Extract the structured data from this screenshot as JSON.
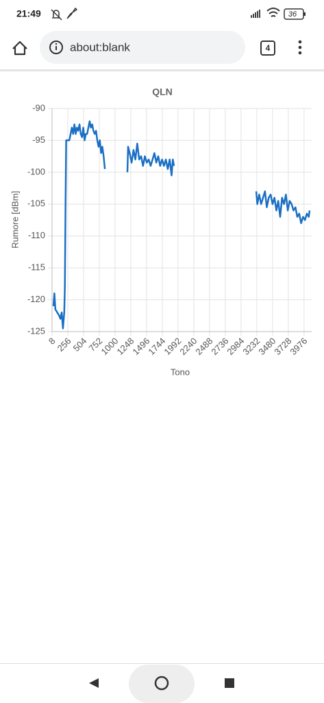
{
  "status_bar": {
    "time": "21:49",
    "battery": "36"
  },
  "browser": {
    "url": "about:blank",
    "tabs": "4"
  },
  "chart_data": {
    "type": "line",
    "title": "QLN",
    "y_label": "Rumore [dBm]",
    "x_label": "Tono",
    "xlim": [
      8,
      4096
    ],
    "xticks": [
      8,
      256,
      504,
      752,
      1000,
      1248,
      1496,
      1744,
      1992,
      2240,
      2488,
      2736,
      2984,
      3232,
      3480,
      3728,
      3976
    ],
    "ylim": [
      -125,
      -90
    ],
    "yticks": [
      -125,
      -120,
      -115,
      -110,
      -105,
      -100,
      -95,
      -90
    ],
    "grid": true,
    "series": [
      {
        "name": "QLN",
        "color": "#1a6fc4",
        "x": [
          30,
          45,
          60,
          90,
          120,
          140,
          160,
          180,
          200,
          210,
          220,
          230,
          280,
          300,
          320,
          340,
          360,
          380,
          400,
          420,
          440,
          460,
          480,
          500,
          520,
          540,
          560,
          580,
          600,
          620,
          640,
          660,
          680,
          700,
          720,
          740,
          760,
          780,
          800,
          820,
          840,
          1000,
          1195,
          1205,
          1230,
          1260,
          1290,
          1320,
          1350,
          1380,
          1410,
          1440,
          1470,
          1500,
          1530,
          1560,
          1590,
          1620,
          1650,
          1680,
          1710,
          1740,
          1770,
          1800,
          1830,
          1860,
          1890,
          1910,
          1928,
          2500,
          3223,
          3240,
          3270,
          3300,
          3330,
          3360,
          3390,
          3420,
          3450,
          3480,
          3510,
          3540,
          3570,
          3600,
          3630,
          3660,
          3690,
          3720,
          3750,
          3780,
          3810,
          3840,
          3870,
          3900,
          3930,
          3960,
          3990,
          4020,
          4050,
          4064
        ],
        "values": [
          -121,
          -119,
          -121.5,
          -122,
          -122.5,
          -123,
          -122,
          -124.5,
          -122,
          -118,
          -105,
          -95,
          -95,
          -94,
          -93,
          -94,
          -92.5,
          -94,
          -93,
          -93.5,
          -92.5,
          -94,
          -94.5,
          -93,
          -95,
          -94,
          -94,
          -93,
          -92,
          -93,
          -92.5,
          -93.5,
          -94,
          -93.5,
          -95,
          -96,
          -95,
          -97,
          -96,
          -97.5,
          -99.5,
          null,
          -100,
          -96,
          -97,
          -98.5,
          -96.5,
          -98,
          -95.5,
          -98,
          -97.5,
          -99,
          -97.5,
          -98.5,
          -98,
          -99,
          -98,
          -97,
          -98.5,
          -97.5,
          -99,
          -98,
          -99,
          -98,
          -99.5,
          -98,
          -100.5,
          -98,
          -99,
          null,
          -103,
          -105,
          -103.5,
          -105,
          -104,
          -103,
          -105.5,
          -104,
          -103.5,
          -105,
          -104,
          -106,
          -104.5,
          -107,
          -104,
          -105,
          -103.5,
          -106,
          -104.5,
          -105,
          -106,
          -105.5,
          -107,
          -106.5,
          -108,
          -107,
          -107.5,
          -106.5,
          -107,
          -106
        ]
      }
    ]
  }
}
